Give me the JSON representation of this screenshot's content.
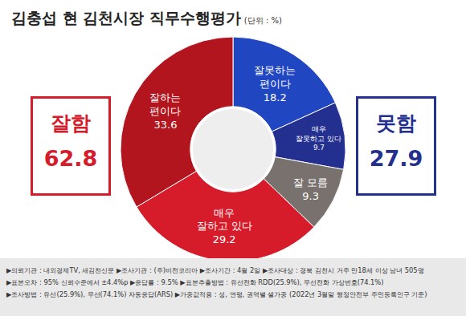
{
  "chart_data": {
    "type": "pie",
    "title": "김충섭 현 김천시장 직무수행평가",
    "subtitle": "(단위 : %)",
    "categories": [
      "잘못하는 편이다",
      "매우 잘못하고 있다",
      "잘 모름",
      "매우 잘하고 있다",
      "잘하는 편이다"
    ],
    "values": [
      18.2,
      9.7,
      9.3,
      29.2,
      33.6
    ],
    "colors": [
      "#2146c2",
      "#24308f",
      "#78716d",
      "#d61c2b",
      "#b3151e"
    ],
    "data_labels": true,
    "annotations": [
      {
        "label": "잘함",
        "value": 62.8,
        "color": "#d61c2b"
      },
      {
        "label": "못함",
        "value": 27.9,
        "color": "#24308f"
      }
    ],
    "notes": [
      "▶의뢰기관 : 내외경제TV, 새김천신문  ▶조사기관 : (주)비전코리아  ▶조사기간 : 4월 2일  ▶조사대상 : 경북 김천시 거주 만18세 이상 남녀 505명",
      "▶표본오차 : 95% 신뢰수준에서 ±4.4%p  ▶응답률 : 9.5%  ▶표본추출방법 : 유선전화 RDD(25.9%), 무선전화 가상번호(74.1%)",
      "▶조사방법 : 유선(25.9%), 무선(74.1%) 자동응답(ARS)  ▶가중값적용 : 성, 연령, 권역별 셀가중 (2022년 3월말 행정안전부 주민등록인구 기준)"
    ]
  }
}
